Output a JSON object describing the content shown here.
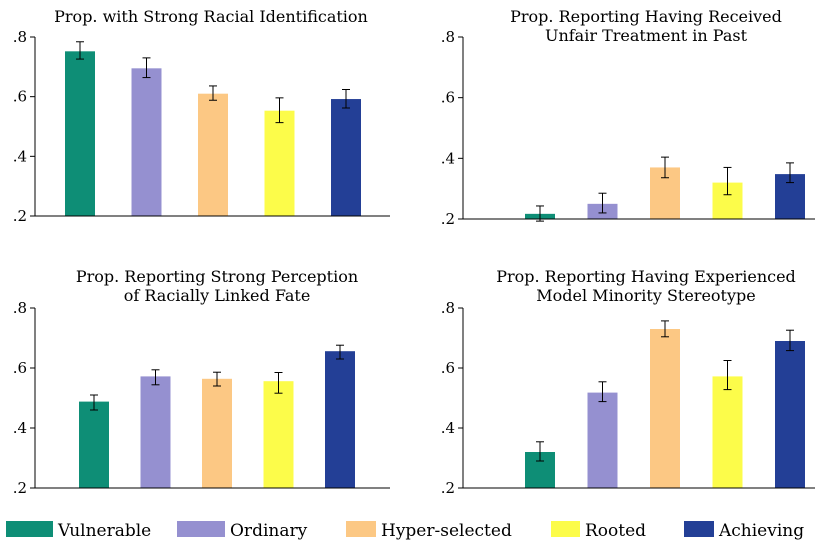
{
  "chart_data": {
    "type": "bar",
    "legend": {
      "placement": "bottom",
      "items": [
        {
          "name": "Vulnerable",
          "color": "#0e8e76"
        },
        {
          "name": "Ordinary",
          "color": "#9590d0"
        },
        {
          "name": "Hyper-selected",
          "color": "#fcc884"
        },
        {
          "name": "Rooted",
          "color": "#fcfc4a"
        },
        {
          "name": "Achieving",
          "color": "#233f96"
        }
      ]
    },
    "panels": [
      {
        "title": [
          "Prop. with Strong Racial Identification"
        ],
        "ylim": [
          0.2,
          0.8
        ],
        "yticks": [
          0.2,
          0.4,
          0.6,
          0.8
        ],
        "yticklabels": [
          ".2",
          ".4",
          ".6",
          ".8"
        ],
        "categories": [
          "Vulnerable",
          "Ordinary",
          "Hyper-selected",
          "Rooted",
          "Achieving"
        ],
        "values": [
          0.752,
          0.695,
          0.61,
          0.553,
          0.592
        ],
        "ci_low": [
          0.726,
          0.664,
          0.588,
          0.513,
          0.562
        ],
        "ci_high": [
          0.784,
          0.73,
          0.636,
          0.596,
          0.624
        ]
      },
      {
        "title": [
          "Prop. Reporting Having Received",
          "Unfair Treatment in Past"
        ],
        "ylim": [
          0.2,
          0.8
        ],
        "yticks": [
          0.2,
          0.4,
          0.6,
          0.8
        ],
        "yticklabels": [
          ".2",
          ".4",
          ".6",
          ".8"
        ],
        "categories": [
          "Vulnerable",
          "Ordinary",
          "Hyper-selected",
          "Rooted",
          "Achieving"
        ],
        "values": [
          0.217,
          0.25,
          0.37,
          0.32,
          0.348
        ],
        "ci_low": [
          0.193,
          0.22,
          0.336,
          0.28,
          0.32
        ],
        "ci_high": [
          0.243,
          0.285,
          0.404,
          0.37,
          0.385
        ]
      },
      {
        "title": [
          "Prop. Reporting Strong Perception",
          "of Racially Linked Fate"
        ],
        "ylim": [
          0.2,
          0.8
        ],
        "yticks": [
          0.2,
          0.4,
          0.6,
          0.8
        ],
        "yticklabels": [
          ".2",
          ".4",
          ".6",
          ".8"
        ],
        "categories": [
          "Vulnerable",
          "Ordinary",
          "Hyper-selected",
          "Rooted",
          "Achieving"
        ],
        "values": [
          0.488,
          0.572,
          0.564,
          0.556,
          0.656
        ],
        "ci_low": [
          0.46,
          0.544,
          0.54,
          0.516,
          0.63
        ],
        "ci_high": [
          0.51,
          0.594,
          0.586,
          0.585,
          0.676
        ]
      },
      {
        "title": [
          "Prop. Reporting Having Experienced",
          "Model Minority Stereotype"
        ],
        "ylim": [
          0.2,
          0.8
        ],
        "yticks": [
          0.2,
          0.4,
          0.6,
          0.8
        ],
        "yticklabels": [
          ".2",
          ".4",
          ".6",
          ".8"
        ],
        "categories": [
          "Vulnerable",
          "Ordinary",
          "Hyper-selected",
          "Rooted",
          "Achieving"
        ],
        "values": [
          0.32,
          0.518,
          0.73,
          0.572,
          0.69
        ],
        "ci_low": [
          0.29,
          0.488,
          0.704,
          0.528,
          0.658
        ],
        "ci_high": [
          0.354,
          0.554,
          0.757,
          0.625,
          0.726
        ]
      }
    ]
  }
}
